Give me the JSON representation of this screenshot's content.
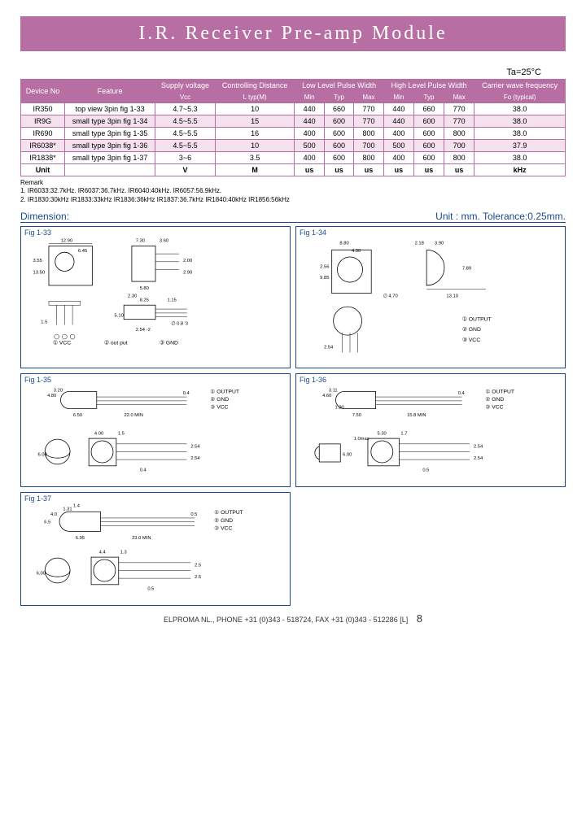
{
  "title": "I.R. Receiver Pre-amp Module",
  "temp_note": "Ta=25°C",
  "table": {
    "headers_row1": [
      "Device No",
      "Feature",
      "Supply voltage",
      "Controlling Distance",
      "Low Level Pulse Width",
      "High Level Pulse Width",
      "Carrier wave frequency"
    ],
    "headers_row2_supply": "Vcc",
    "headers_row2_dist": "L typ(M)",
    "headers_row2_low": [
      "Min",
      "Typ",
      "Max"
    ],
    "headers_row2_high": [
      "Min",
      "Typ",
      "Max"
    ],
    "headers_row2_freq": "Fo (typical)",
    "rows": [
      {
        "dev": "IR350",
        "feat": "top view 3pin fig 1-33",
        "vcc": "4.7~5.3",
        "dist": "10",
        "lmin": "440",
        "ltyp": "660",
        "lmax": "770",
        "hmin": "440",
        "htyp": "660",
        "hmax": "770",
        "freq": "38.0",
        "alt": false
      },
      {
        "dev": "IR9G",
        "feat": "small type 3pin fig 1-34",
        "vcc": "4.5~5.5",
        "dist": "15",
        "lmin": "440",
        "ltyp": "600",
        "lmax": "770",
        "hmin": "440",
        "htyp": "600",
        "hmax": "770",
        "freq": "38.0",
        "alt": true
      },
      {
        "dev": "IR690",
        "feat": "small type 3pin fig 1-35",
        "vcc": "4.5~5.5",
        "dist": "16",
        "lmin": "400",
        "ltyp": "600",
        "lmax": "800",
        "hmin": "400",
        "htyp": "600",
        "hmax": "800",
        "freq": "38.0",
        "alt": false
      },
      {
        "dev": "IR6038*",
        "feat": "small type 3pin fig 1-36",
        "vcc": "4.5~5.5",
        "dist": "10",
        "lmin": "500",
        "ltyp": "600",
        "lmax": "700",
        "hmin": "500",
        "htyp": "600",
        "hmax": "700",
        "freq": "37.9",
        "alt": true
      },
      {
        "dev": "IR1838*",
        "feat": "small type 3pin fig 1-37",
        "vcc": "3~6",
        "dist": "3.5",
        "lmin": "400",
        "ltyp": "600",
        "lmax": "800",
        "hmin": "400",
        "htyp": "600",
        "hmax": "800",
        "freq": "38.0",
        "alt": false
      }
    ],
    "unit_row": {
      "dev": "Unit",
      "feat": "",
      "vcc": "V",
      "dist": "M",
      "lmin": "us",
      "ltyp": "us",
      "lmax": "us",
      "hmin": "us",
      "htyp": "us",
      "hmax": "us",
      "freq": "kHz"
    }
  },
  "remark": {
    "label": "Remark",
    "line1": "1. IR6033:32.7kHz.   IR6037:36.7kHz.   IR6040:40kHz.   IR6057:56.9kHz.",
    "line2": "2. IR1830:30kHz   IR1833:33kHz   IR1836:36kHz   IR1837:36.7kHz   IR1840:40kHz   IR1856:56kHz"
  },
  "dimension": {
    "label": "Dimension:",
    "unit_note": "Unit : mm.   Tolerance:0.25mm."
  },
  "figs": {
    "f33": {
      "label": "Fig 1-33",
      "d1": "12.90",
      "d2": "6.45",
      "d3": "3.55",
      "d4": "13.50",
      "d5": "7.30",
      "d6": "3.60",
      "d7": "2.00",
      "d8": "2.90",
      "d9": "5.80",
      "d10": "8.25",
      "d11": "2.30",
      "d12": "1.15",
      "d13": "∅ 0.8 '3",
      "d14": "5.10",
      "d15": "2.54 -2",
      "d16": "1.5",
      "pin1": "① VCC",
      "pin2": "② out put",
      "pin3": "③ GND"
    },
    "f34": {
      "label": "Fig 1-34",
      "d1": "8.80",
      "d2": "4.30",
      "d3": "2.56",
      "d4": "9.85",
      "d5": "2.18",
      "d6": "3.90",
      "d7": "7.89",
      "d8": "∅ 4.70",
      "d9": "13.10",
      "d10": "2.54",
      "pin1": "① OUTPUT",
      "pin2": "② GND",
      "pin3": "③ VCC"
    },
    "f35": {
      "label": "Fig 1-35",
      "d1": "4.80",
      "d2": "3.20",
      "d3": "6.50",
      "d4": "22.0 MIN",
      "d5": "0.4",
      "d6": "4.00",
      "d7": "1.5",
      "d8": "6.00",
      "d9": "2.54",
      "d10": "2.54",
      "d11": "0.4",
      "pin1": "① OUTPUT",
      "pin2": "② GND",
      "pin3": "③ VCC"
    },
    "f36": {
      "label": "Fig 1-36",
      "d1": "4.60",
      "d2": "3.11",
      "d3": "1.30",
      "d4": "7.50",
      "d5": "15.8 MIN",
      "d6": "0.4",
      "d7": "1.0max",
      "d8": "5.30",
      "d9": "1.7",
      "d10": "6.00",
      "d11": "2.54",
      "d12": "2.54",
      "d13": "0.5",
      "pin1": "① OUTPUT",
      "pin2": "② GND",
      "pin3": "③ VCC"
    },
    "f37": {
      "label": "Fig 1-37",
      "d1": "6.5",
      "d2": "4.0",
      "d3": "1.31",
      "d4": "1.4",
      "d5": "6.95",
      "d6": "23.0 MIN",
      "d7": "0.5",
      "d8": "4.4",
      "d9": "1.3",
      "d10": "6.00",
      "d11": "2.5",
      "d12": "2.5",
      "d13": "0.5",
      "pin1": "① OUTPUT",
      "pin2": "② GND",
      "pin3": "③ VCC"
    }
  },
  "footer": {
    "text": "ELPROMA NL., PHONE +31 (0)343 - 518724, FAX +31 (0)343 - 512286 [L]",
    "page": "8"
  }
}
